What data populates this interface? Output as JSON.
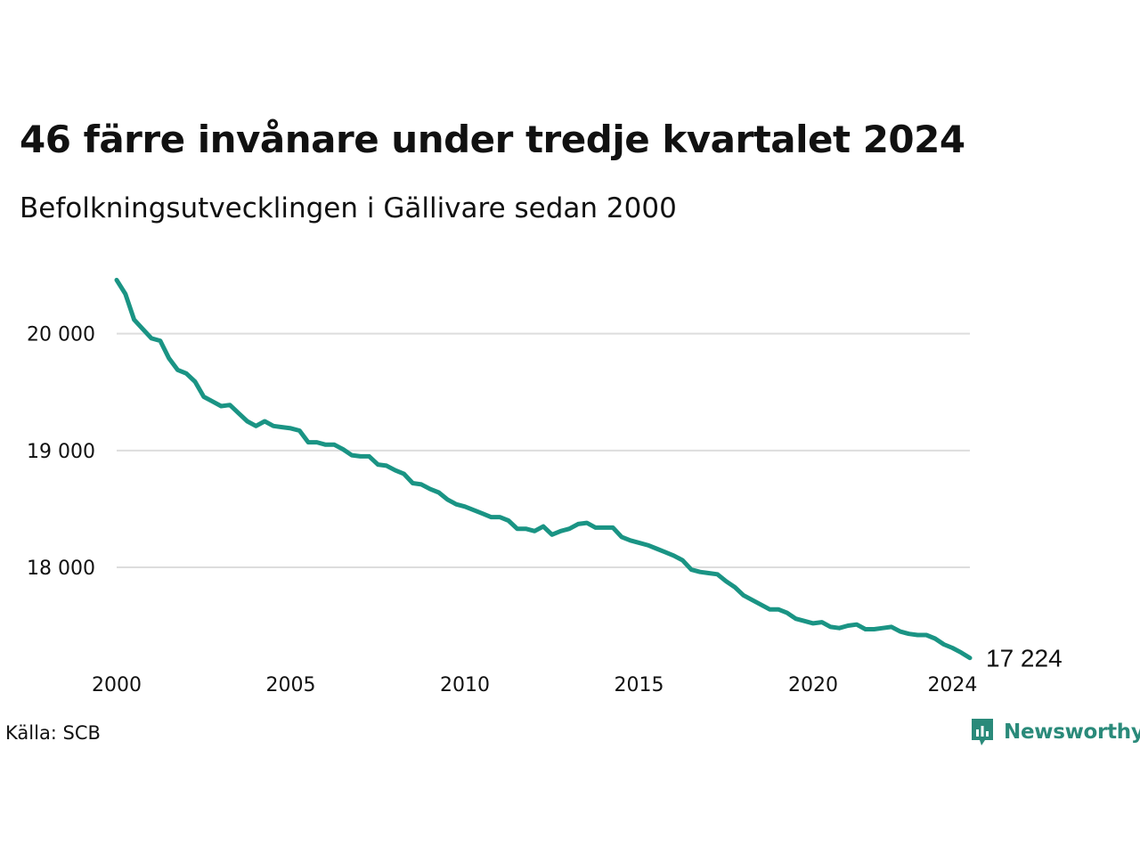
{
  "title": "46 färre invånare under tredje kvartalet 2024",
  "subtitle": "Befolkningsutvecklingen i Gällivare sedan 2000",
  "source": "Källa: SCB",
  "brand": {
    "name": "Newsworthy",
    "icon": "newsworthy-logo-icon"
  },
  "colors": {
    "line": "#1a9484",
    "brand": "#2a8a7a",
    "grid": "#dddddd"
  },
  "chart_data": {
    "type": "line",
    "title": "46 färre invånare under tredje kvartalet 2024",
    "subtitle": "Befolkningsutvecklingen i Gällivare sedan 2000",
    "xlabel": "",
    "ylabel": "",
    "xlim": [
      2000,
      2025
    ],
    "ylim": [
      17100,
      20600
    ],
    "x_ticks": [
      2000,
      2005,
      2010,
      2015,
      2020,
      2024
    ],
    "y_ticks": [
      {
        "value": 18000,
        "label": "18 000"
      },
      {
        "value": 19000,
        "label": "19 000"
      },
      {
        "value": 20000,
        "label": "20 000"
      }
    ],
    "grid": "horizontal",
    "end_label": "17 224",
    "x_start": 2000.0,
    "x_step": 0.25,
    "values": [
      20460,
      20340,
      20120,
      20040,
      19960,
      19940,
      19790,
      19690,
      19660,
      19590,
      19460,
      19420,
      19380,
      19390,
      19320,
      19250,
      19210,
      19250,
      19210,
      19200,
      19190,
      19170,
      19070,
      19070,
      19050,
      19050,
      19010,
      18960,
      18950,
      18950,
      18880,
      18870,
      18830,
      18800,
      18720,
      18710,
      18670,
      18640,
      18580,
      18540,
      18520,
      18490,
      18460,
      18430,
      18430,
      18400,
      18330,
      18330,
      18310,
      18350,
      18280,
      18310,
      18330,
      18370,
      18380,
      18340,
      18340,
      18340,
      18260,
      18230,
      18210,
      18190,
      18160,
      18130,
      18100,
      18060,
      17980,
      17960,
      17950,
      17940,
      17880,
      17830,
      17760,
      17720,
      17680,
      17640,
      17640,
      17610,
      17560,
      17540,
      17520,
      17530,
      17490,
      17480,
      17500,
      17510,
      17470,
      17470,
      17480,
      17490,
      17450,
      17430,
      17420,
      17420,
      17390,
      17340,
      17310,
      17270,
      17224
    ]
  }
}
